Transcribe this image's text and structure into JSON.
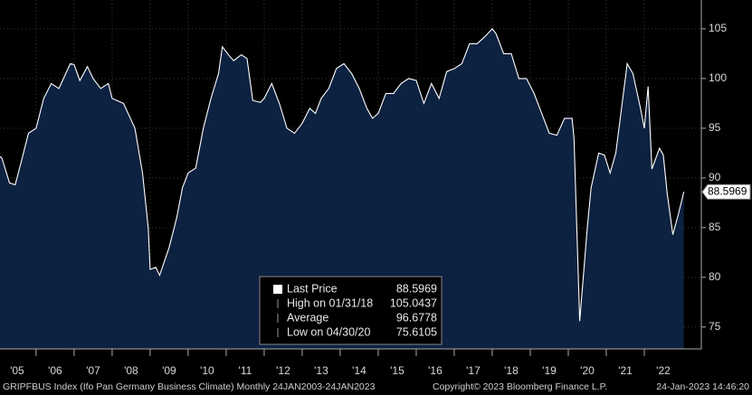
{
  "chart_data": {
    "type": "area",
    "series": [
      {
        "name": "Last Price",
        "color": "#ffffff",
        "fill": "#0d2140",
        "x": [
          2005.0,
          2005.1,
          2005.3,
          2005.45,
          2005.6,
          2005.8,
          2006.0,
          2006.2,
          2006.4,
          2006.6,
          2006.9,
          2007.0,
          2007.15,
          2007.35,
          2007.5,
          2007.7,
          2007.9,
          2008.0,
          2008.3,
          2008.6,
          2008.8,
          2008.95,
          2009.0,
          2009.15,
          2009.25,
          2009.5,
          2009.7,
          2009.85,
          2010.0,
          2010.2,
          2010.4,
          2010.6,
          2010.8,
          2010.9,
          2011.1,
          2011.2,
          2011.4,
          2011.55,
          2011.7,
          2011.9,
          2012.0,
          2012.2,
          2012.4,
          2012.6,
          2012.8,
          2013.0,
          2013.2,
          2013.35,
          2013.5,
          2013.7,
          2013.9,
          2014.1,
          2014.3,
          2014.5,
          2014.7,
          2014.85,
          2015.0,
          2015.2,
          2015.4,
          2015.6,
          2015.8,
          2016.0,
          2016.2,
          2016.4,
          2016.6,
          2016.8,
          2017.0,
          2017.2,
          2017.4,
          2017.6,
          2017.8,
          2018.0,
          2018.1,
          2018.3,
          2018.5,
          2018.7,
          2018.9,
          2019.1,
          2019.3,
          2019.5,
          2019.7,
          2019.9,
          2020.1,
          2020.15,
          2020.3,
          2020.5,
          2020.6,
          2020.8,
          2020.95,
          2021.1,
          2021.25,
          2021.4,
          2021.55,
          2021.7,
          2021.9,
          2022.0,
          2022.1,
          2022.2,
          2022.4,
          2022.5,
          2022.6,
          2022.75,
          2022.9,
          2023.04
        ],
        "values": [
          92.3,
          92.0,
          89.5,
          89.3,
          91.5,
          94.5,
          95,
          98,
          99.5,
          99,
          101.5,
          101.4,
          99.8,
          101.2,
          100,
          99,
          99.5,
          98,
          97.5,
          95,
          90.5,
          85,
          80.8,
          81,
          80.2,
          83,
          86,
          89,
          90.5,
          91,
          95,
          98,
          100.5,
          103.2,
          102.2,
          101.8,
          102.4,
          102,
          97.8,
          97.6,
          98,
          99.5,
          97.5,
          95,
          94.5,
          95.5,
          97,
          96.5,
          98,
          99,
          101,
          101.5,
          100.5,
          99,
          97,
          96,
          96.5,
          98.5,
          98.5,
          99.5,
          100,
          99.8,
          97.5,
          99.5,
          98,
          100.7,
          101,
          101.5,
          103.5,
          103.5,
          104.2,
          105.0,
          104.5,
          102.5,
          102.5,
          100,
          100,
          98.5,
          96.5,
          94.5,
          94.3,
          96,
          96,
          94,
          75.6,
          85,
          89,
          92.5,
          92.3,
          90.5,
          92.5,
          97,
          101.5,
          100.5,
          97,
          95,
          99.2,
          90.9,
          93,
          92.3,
          88.5,
          84.3,
          86.4,
          88.5969
        ]
      }
    ],
    "xlim": [
      2005.05,
      2023.5
    ],
    "ylim": [
      72.8,
      107.9
    ],
    "yticks": [
      75,
      80,
      85,
      90,
      95,
      100,
      105
    ],
    "xticks": [
      {
        "value": 2005.5,
        "label": "'05"
      },
      {
        "value": 2006.5,
        "label": "'06"
      },
      {
        "value": 2007.5,
        "label": "'07"
      },
      {
        "value": 2008.5,
        "label": "'08"
      },
      {
        "value": 2009.5,
        "label": "'09"
      },
      {
        "value": 2010.5,
        "label": "'10"
      },
      {
        "value": 2011.5,
        "label": "'11"
      },
      {
        "value": 2012.5,
        "label": "'12"
      },
      {
        "value": 2013.5,
        "label": "'13"
      },
      {
        "value": 2014.5,
        "label": "'14"
      },
      {
        "value": 2015.5,
        "label": "'15"
      },
      {
        "value": 2016.5,
        "label": "'16"
      },
      {
        "value": 2017.5,
        "label": "'17"
      },
      {
        "value": 2018.5,
        "label": "'18"
      },
      {
        "value": 2019.5,
        "label": "'19"
      },
      {
        "value": 2020.5,
        "label": "'20"
      },
      {
        "value": 2021.5,
        "label": "'21"
      },
      {
        "value": 2022.5,
        "label": "'22"
      }
    ],
    "grid": true,
    "legend": [
      {
        "label": "Last Price"
      },
      {
        "label": "High on 01/31/18",
        "value": 105.0437
      },
      {
        "label": "Average",
        "value": 96.6778
      },
      {
        "label": "Low on 04/30/20",
        "value": 75.6105
      }
    ],
    "footer": {
      "left": "GRIPFBUS Index (Ifo Pan Germany Business Climate)  Monthly 24JAN2003-24JAN2023",
      "center": "Copyright© 2023 Bloomberg Finance L.P.",
      "right": "24-Jan-2023 14:46:20"
    }
  }
}
